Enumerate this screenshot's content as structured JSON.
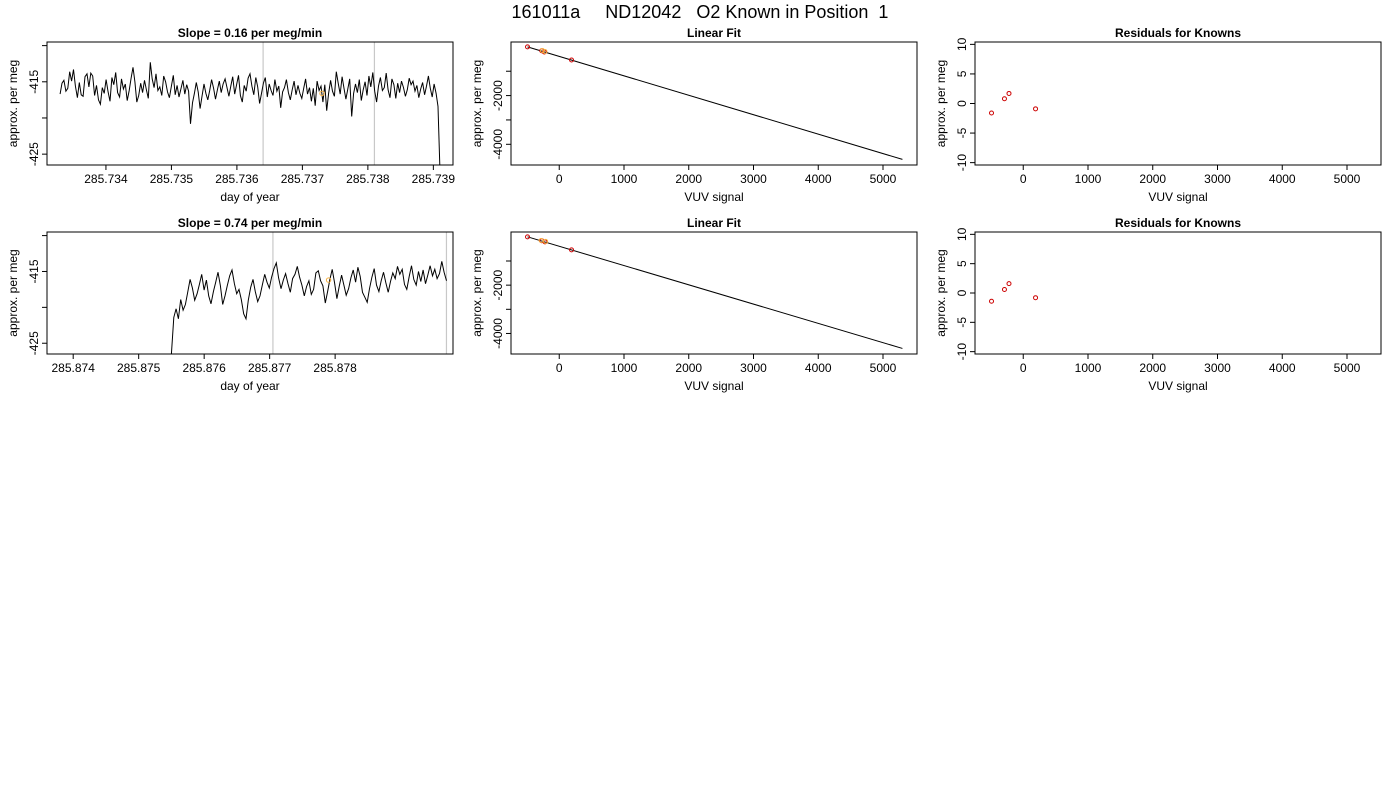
{
  "page": {
    "title": "161011a     ND12042   O2 Known in Position  1"
  },
  "chart_data": [
    {
      "id": "row1-timeseries",
      "type": "line",
      "title": "Slope =  0.16  per meg/min",
      "xlabel": "day of year",
      "ylabel": "approx. per meg",
      "xlim": [
        285.7331,
        285.7393
      ],
      "ylim": [
        -426.5,
        -409.5
      ],
      "xticks": [
        285.734,
        285.735,
        285.736,
        285.737,
        285.738,
        285.739
      ],
      "xtick_labels": [
        "285.734",
        "285.735",
        "285.736",
        "285.737",
        "285.738",
        "285.739"
      ],
      "yticks": [
        -425,
        -420,
        -415,
        -410
      ],
      "ytick_labels": [
        "-425",
        "",
        "-415",
        ""
      ],
      "vlines": [
        285.7364,
        285.7381
      ],
      "marker": {
        "x": 285.7373,
        "y": -416.6
      },
      "x_start": 285.7333,
      "x_end": 285.7391,
      "y": [
        -416.7,
        -415.2,
        -414.8,
        -416.3,
        -415.9,
        -413.6,
        -414.9,
        -413.3,
        -415.6,
        -417.2,
        -415.1,
        -416.8,
        -417.0,
        -414.3,
        -413.9,
        -415.7,
        -413.8,
        -414.2,
        -416.9,
        -415.5,
        -417.5,
        -418.1,
        -415.8,
        -416.6,
        -414.7,
        -416.4,
        -417.7,
        -414.4,
        -415.4,
        -413.7,
        -416.5,
        -417.1,
        -414.6,
        -416.0,
        -415.3,
        -417.6,
        -416.2,
        -414.5,
        -413.0,
        -415.0,
        -417.8,
        -416.9,
        -415.2,
        -416.5,
        -414.8,
        -416.1,
        -417.3,
        -412.3,
        -414.6,
        -415.8,
        -413.9,
        -416.2,
        -415.7,
        -416.9,
        -414.2,
        -415.0,
        -416.4,
        -417.2,
        -415.6,
        -414.1,
        -416.8,
        -415.5,
        -417.1,
        -416.0,
        -414.8,
        -416.7,
        -415.4,
        -416.3,
        -420.8,
        -417.9,
        -416.6,
        -415.1,
        -416.4,
        -418.7,
        -417.0,
        -415.3,
        -416.6,
        -417.5,
        -416.2,
        -414.7,
        -415.9,
        -417.4,
        -416.1,
        -414.9,
        -416.5,
        -415.3,
        -414.6,
        -415.8,
        -417.0,
        -415.6,
        -414.3,
        -416.7,
        -415.4,
        -414.1,
        -416.9,
        -417.8,
        -415.5,
        -416.3,
        -414.5,
        -413.9,
        -415.6,
        -416.8,
        -414.4,
        -415.7,
        -418.0,
        -416.6,
        -415.2,
        -414.4,
        -417.1,
        -415.3,
        -416.2,
        -416.9,
        -414.7,
        -416.3,
        -415.6,
        -418.6,
        -416.4,
        -415.8,
        -414.7,
        -416.5,
        -417.5,
        -416.1,
        -414.9,
        -416.8,
        -415.5,
        -416.6,
        -417.3,
        -415.9,
        -414.6,
        -416.7,
        -415.8,
        -417.7,
        -415.9,
        -418.3,
        -414.9,
        -416.2,
        -415.6,
        -417.8,
        -415.4,
        -419.0,
        -416.6,
        -414.8,
        -416.3,
        -417.0,
        -413.6,
        -415.2,
        -416.7,
        -414.3,
        -415.9,
        -417.4,
        -416.0,
        -414.6,
        -419.8,
        -416.6,
        -415.3,
        -416.5,
        -414.7,
        -417.6,
        -416.1,
        -415.0,
        -416.9,
        -414.2,
        -415.7,
        -413.7,
        -416.3,
        -417.8,
        -415.6,
        -414.4,
        -416.2,
        -415.8,
        -413.8,
        -416.1,
        -417.2,
        -414.6,
        -415.4,
        -417.3,
        -415.2,
        -416.5,
        -414.9,
        -415.8,
        -417.0,
        -416.1,
        -414.5,
        -415.4,
        -414.9,
        -416.3,
        -415.5,
        -417.2,
        -416.0,
        -415.1,
        -416.8,
        -415.6,
        -414.2,
        -415.9,
        -417.1,
        -415.3,
        -416.6,
        -418.4,
        -427.0
      ]
    },
    {
      "id": "row1-linearfit",
      "type": "line",
      "title": "Linear Fit",
      "xlabel": "VUV signal",
      "ylabel": "approx. per meg",
      "xlim": [
        -745,
        5525
      ],
      "ylim": [
        -4850,
        200
      ],
      "xticks": [
        0,
        1000,
        2000,
        3000,
        4000,
        5000
      ],
      "xtick_labels": [
        "0",
        "1000",
        "2000",
        "3000",
        "4000",
        "5000"
      ],
      "yticks": [
        -4000,
        -3000,
        -2000,
        -1000
      ],
      "ytick_labels": [
        "-4000",
        "",
        "-2000",
        ""
      ],
      "fit_line": {
        "x": [
          -490,
          5300
        ],
        "y": [
          0,
          -4620
        ]
      },
      "points": [
        {
          "x": -490,
          "y": 0,
          "color": "#cc0000"
        },
        {
          "x": -270,
          "y": -160,
          "color": "#cc0000"
        },
        {
          "x": -230,
          "y": -210,
          "color": "#cc0000"
        },
        {
          "x": 190,
          "y": -540,
          "color": "#cc0000"
        },
        {
          "x": -260,
          "y": -150,
          "color": "#f5b041"
        },
        {
          "x": -220,
          "y": -190,
          "color": "#f5b041"
        }
      ]
    },
    {
      "id": "row1-residuals",
      "type": "scatter",
      "title": "Residuals for Knowns",
      "xlabel": "VUV signal",
      "ylabel": "approx. per meg",
      "xlim": [
        -745,
        5525
      ],
      "ylim": [
        -10.4,
        10.4
      ],
      "xticks": [
        0,
        1000,
        2000,
        3000,
        4000,
        5000
      ],
      "xtick_labels": [
        "0",
        "1000",
        "2000",
        "3000",
        "4000",
        "5000"
      ],
      "yticks": [
        -10,
        -5,
        0,
        5,
        10
      ],
      "ytick_labels": [
        "-10",
        "-5",
        "0",
        "5",
        "10"
      ],
      "points": [
        {
          "x": -490,
          "y": -1.6,
          "color": "#cc0000"
        },
        {
          "x": -290,
          "y": 0.8,
          "color": "#cc0000"
        },
        {
          "x": -220,
          "y": 1.7,
          "color": "#cc0000"
        },
        {
          "x": 190,
          "y": -0.9,
          "color": "#cc0000"
        }
      ]
    },
    {
      "id": "row2-timeseries",
      "type": "line",
      "title": "Slope =  0.74  per meg/min",
      "xlabel": "day of year",
      "ylabel": "approx. per meg",
      "xlim": [
        285.8736,
        285.8798
      ],
      "ylim": [
        -426.5,
        -409.5
      ],
      "xticks": [
        285.874,
        285.875,
        285.876,
        285.877,
        285.878
      ],
      "xtick_labels": [
        "285.874",
        "285.875",
        "285.876",
        "285.877",
        "285.878"
      ],
      "yticks": [
        -425,
        -420,
        -415,
        -410
      ],
      "ytick_labels": [
        "-425",
        "",
        "-415",
        ""
      ],
      "vlines": [
        285.87705,
        285.8797
      ],
      "marker": {
        "x": 285.8779,
        "y": -416.2
      },
      "flat_segment": {
        "x": [
          285.8736,
          285.8755
        ],
        "y": -426.5
      },
      "x_start": 285.8755,
      "x_end": 285.8797,
      "y": [
        -426.5,
        -421.4,
        -420.2,
        -421.6,
        -418.9,
        -420.4,
        -419.6,
        -417.9,
        -416.1,
        -417.3,
        -419.0,
        -418.1,
        -416.8,
        -415.4,
        -417.6,
        -416.2,
        -418.4,
        -419.5,
        -417.8,
        -416.5,
        -415.1,
        -417.0,
        -419.6,
        -418.4,
        -416.9,
        -415.6,
        -414.8,
        -416.7,
        -418.1,
        -417.5,
        -418.9,
        -420.9,
        -421.6,
        -419.0,
        -417.2,
        -416.1,
        -417.8,
        -419.2,
        -418.4,
        -416.9,
        -415.4,
        -416.5,
        -417.3,
        -415.8,
        -414.6,
        -413.8,
        -415.9,
        -417.4,
        -416.2,
        -415.3,
        -416.7,
        -417.9,
        -416.0,
        -415.4,
        -414.3,
        -415.8,
        -416.9,
        -418.4,
        -417.1,
        -416.3,
        -418.2,
        -417.5,
        -415.2,
        -414.9,
        -416.3,
        -417.0,
        -419.4,
        -417.8,
        -416.1,
        -414.7,
        -416.6,
        -418.8,
        -417.1,
        -415.5,
        -416.9,
        -418.3,
        -417.4,
        -415.9,
        -414.8,
        -416.5,
        -414.4,
        -415.7,
        -417.9,
        -418.6,
        -419.3,
        -417.4,
        -415.8,
        -414.6,
        -416.9,
        -417.8,
        -416.3,
        -415.1,
        -416.6,
        -417.9,
        -416.4,
        -415.2,
        -416.0,
        -414.3,
        -415.4,
        -414.7,
        -416.8,
        -417.5,
        -415.7,
        -414.2,
        -416.1,
        -416.9,
        -415.0,
        -416.4,
        -414.8,
        -416.7,
        -415.5,
        -414.2,
        -415.6,
        -414.7,
        -416.0,
        -415.3,
        -413.6,
        -415.1,
        -416.3
      ]
    },
    {
      "id": "row2-linearfit",
      "type": "line",
      "title": "Linear Fit",
      "xlabel": "VUV signal",
      "ylabel": "approx. per meg",
      "xlim": [
        -745,
        5525
      ],
      "ylim": [
        -4850,
        200
      ],
      "xticks": [
        0,
        1000,
        2000,
        3000,
        4000,
        5000
      ],
      "xtick_labels": [
        "0",
        "1000",
        "2000",
        "3000",
        "4000",
        "5000"
      ],
      "yticks": [
        -4000,
        -3000,
        -2000,
        -1000
      ],
      "ytick_labels": [
        "-4000",
        "",
        "-2000",
        ""
      ],
      "fit_line": {
        "x": [
          -490,
          5300
        ],
        "y": [
          0,
          -4620
        ]
      },
      "points": [
        {
          "x": -490,
          "y": 0,
          "color": "#cc0000"
        },
        {
          "x": -270,
          "y": -160,
          "color": "#cc0000"
        },
        {
          "x": -220,
          "y": -210,
          "color": "#cc0000"
        },
        {
          "x": 190,
          "y": -540,
          "color": "#cc0000"
        },
        {
          "x": -280,
          "y": -150,
          "color": "#f5b041"
        },
        {
          "x": -210,
          "y": -190,
          "color": "#f5b041"
        }
      ]
    },
    {
      "id": "row2-residuals",
      "type": "scatter",
      "title": "Residuals for Knowns",
      "xlabel": "VUV signal",
      "ylabel": "approx. per meg",
      "xlim": [
        -745,
        5525
      ],
      "ylim": [
        -10.4,
        10.4
      ],
      "xticks": [
        0,
        1000,
        2000,
        3000,
        4000,
        5000
      ],
      "xtick_labels": [
        "0",
        "1000",
        "2000",
        "3000",
        "4000",
        "5000"
      ],
      "yticks": [
        -10,
        -5,
        0,
        5,
        10
      ],
      "ytick_labels": [
        "-10",
        "-5",
        "0",
        "5",
        "10"
      ],
      "points": [
        {
          "x": -490,
          "y": -1.4,
          "color": "#cc0000"
        },
        {
          "x": -290,
          "y": 0.6,
          "color": "#cc0000"
        },
        {
          "x": -220,
          "y": 1.6,
          "color": "#cc0000"
        },
        {
          "x": 190,
          "y": -0.8,
          "color": "#cc0000"
        }
      ]
    }
  ]
}
